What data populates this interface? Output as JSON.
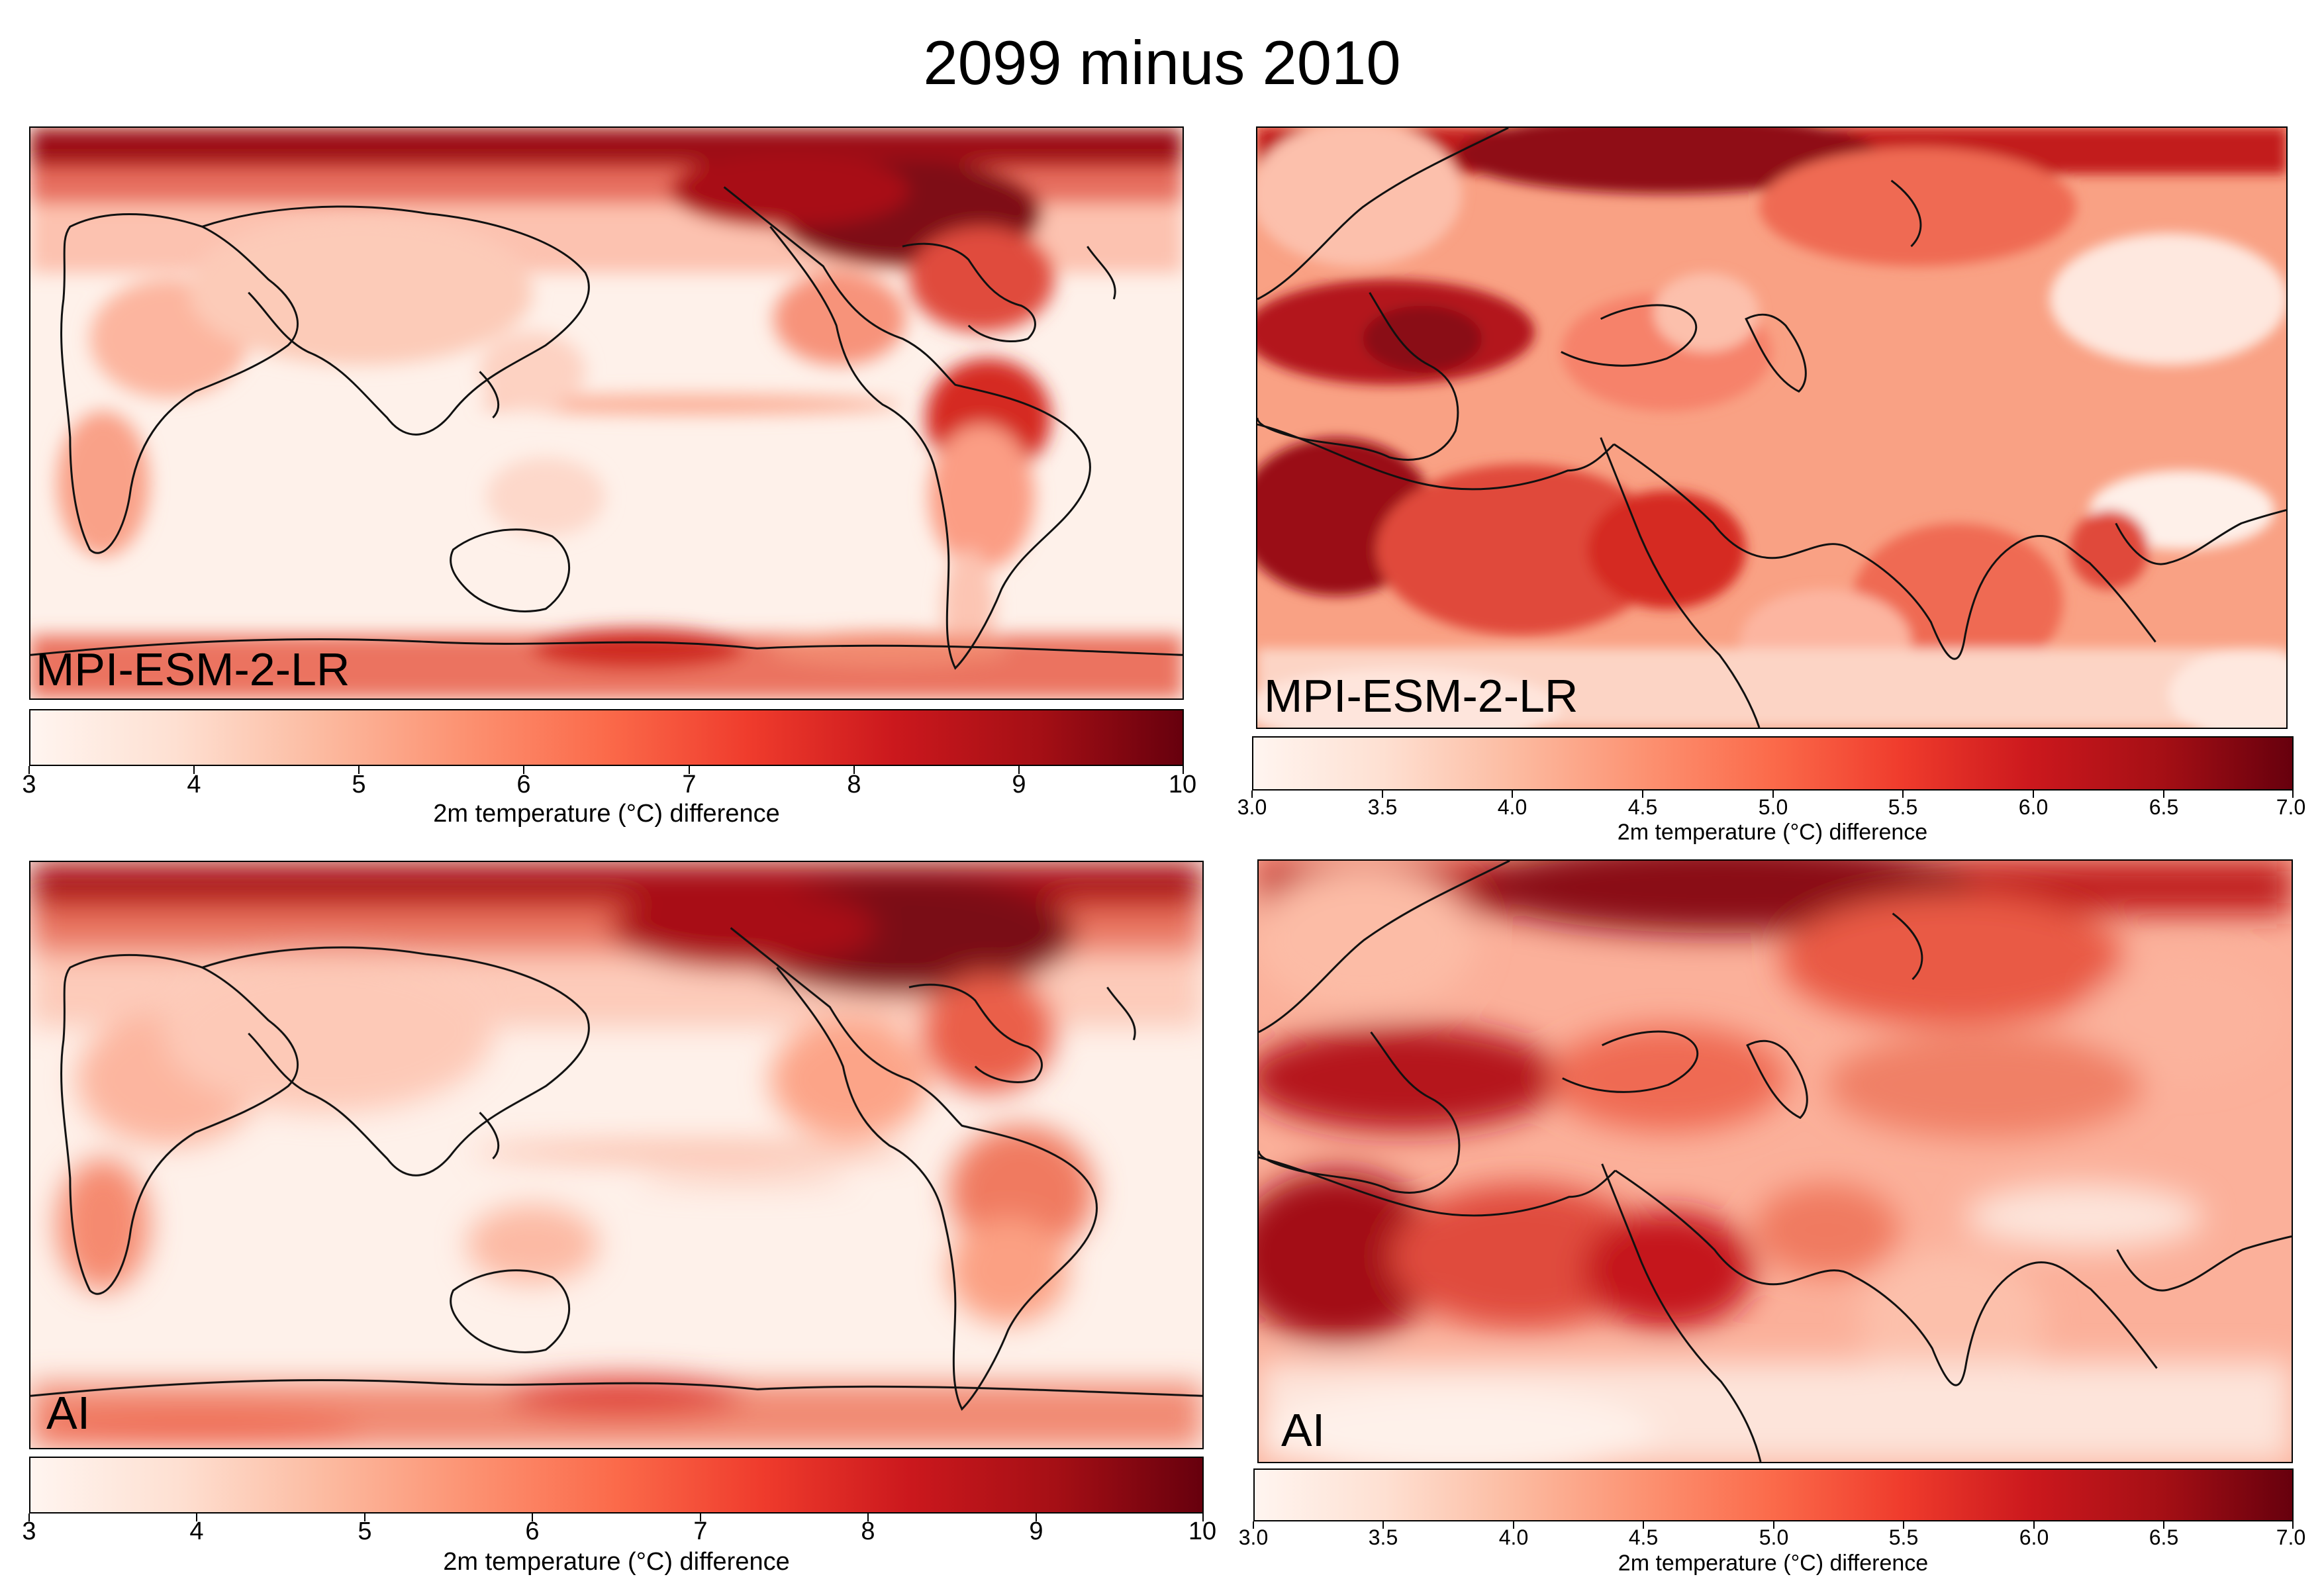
{
  "title": "2099 minus 2010",
  "colormap": [
    "#fff5f0",
    "#fee0d2",
    "#fcbba1",
    "#fc9272",
    "#fb6a4a",
    "#ef3b2c",
    "#cb181d",
    "#a50f15",
    "#67000d"
  ],
  "chart_data": [
    {
      "type": "heatmap",
      "panel": "top-left",
      "model_label": "MPI-ESM-2-LR",
      "region": "global",
      "colorbar": {
        "label": "2m temperature (°C) difference",
        "range": [
          3,
          10
        ],
        "tick_labels": [
          "3",
          "4",
          "5",
          "6",
          "7",
          "8",
          "9",
          "10"
        ]
      }
    },
    {
      "type": "heatmap",
      "panel": "top-right",
      "model_label": "MPI-ESM-2-LR",
      "region": "Europe and Asia",
      "colorbar": {
        "label": "2m temperature (°C) difference",
        "range": [
          3.0,
          7.0
        ],
        "tick_labels": [
          "3.0",
          "3.5",
          "4.0",
          "4.5",
          "5.0",
          "5.5",
          "6.0",
          "6.5",
          "7.0"
        ]
      }
    },
    {
      "type": "heatmap",
      "panel": "bottom-left",
      "model_label": "AI",
      "region": "global",
      "colorbar": {
        "label": "2m temperature (°C) difference",
        "range": [
          3,
          10
        ],
        "tick_labels": [
          "3",
          "4",
          "5",
          "6",
          "7",
          "8",
          "9",
          "10"
        ]
      }
    },
    {
      "type": "heatmap",
      "panel": "bottom-right",
      "model_label": "AI",
      "region": "Europe and Asia",
      "colorbar": {
        "label": "2m temperature (°C) difference",
        "range": [
          3.0,
          7.0
        ],
        "tick_labels": [
          "3.0",
          "3.5",
          "4.0",
          "4.5",
          "5.0",
          "5.5",
          "6.0",
          "6.5",
          "7.0"
        ]
      }
    }
  ]
}
